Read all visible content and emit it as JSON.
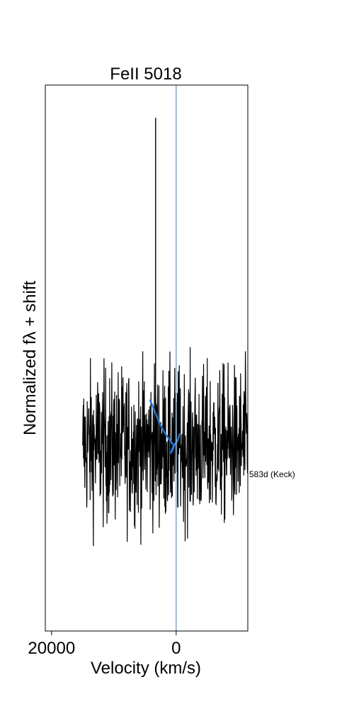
{
  "chart_data": {
    "type": "line",
    "title": "FeII 5018",
    "xlabel": "Velocity (km/s)",
    "ylabel": "Normalized fλ + shift",
    "xlim": [
      21000,
      -11500
    ],
    "ylim": [
      -1.5,
      3.5
    ],
    "x_inverted": true,
    "xticks": [
      {
        "value": 20000,
        "label": "20000"
      },
      {
        "value": 0,
        "label": "0"
      }
    ],
    "grid": false,
    "reference_line": {
      "x": 0,
      "color": "#8db4db"
    },
    "series": [
      {
        "color": "#000000",
        "noise_amplitude": 0.35,
        "x_range": [
          15000,
          -11500
        ],
        "baseline": 0.2,
        "spike": {
          "x": 3300,
          "y": 3.2
        }
      },
      {
        "color": "#1f77d4",
        "x": [
          4200,
          3500,
          2800,
          2000,
          1300,
          800,
          500,
          300,
          600,
          900,
          400,
          -200,
          -600
        ],
        "y": [
          0.62,
          0.52,
          0.42,
          0.33,
          0.27,
          0.23,
          0.21,
          0.2,
          0.15,
          0.13,
          0.2,
          0.24,
          0.31
        ]
      }
    ],
    "annotations": [
      {
        "text": "583d (Keck)",
        "x": -11500,
        "y": 0.0
      }
    ],
    "colors": {
      "axes": "#000000",
      "spectrum": "#000000",
      "model": "#1f77d4",
      "reference": "#8db4db"
    }
  }
}
